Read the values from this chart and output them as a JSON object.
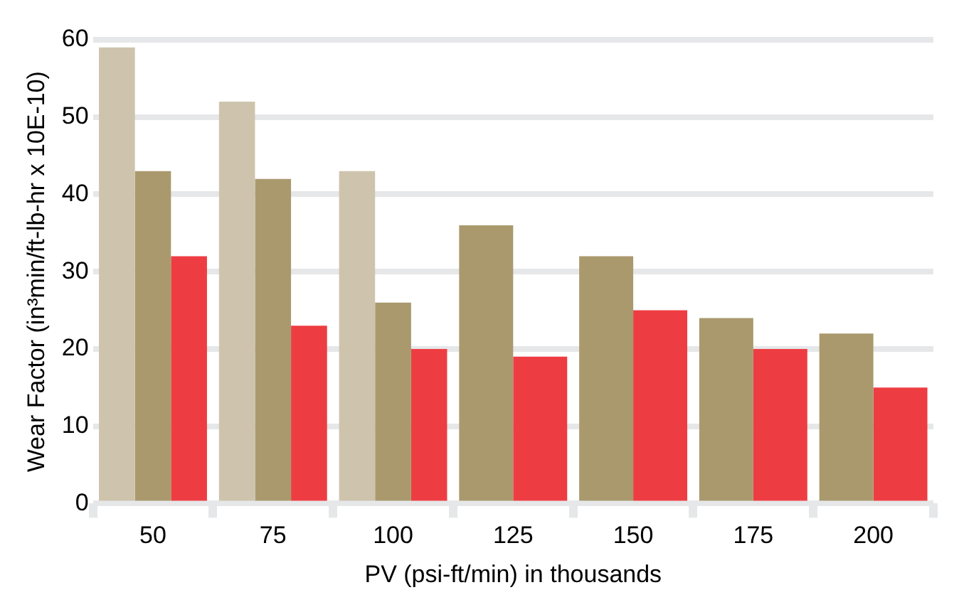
{
  "chart_data": {
    "type": "bar",
    "xlabel": "PV (psi-ft/min) in thousands",
    "ylabel": "Wear Factor (in³min/ft-lb-hr x 10E-10)",
    "categories": [
      "50",
      "75",
      "100",
      "125",
      "150",
      "175",
      "200"
    ],
    "series": [
      {
        "color": "#cec4ad",
        "values": [
          59,
          52,
          43,
          null,
          null,
          null,
          null
        ]
      },
      {
        "color": "#a9996d",
        "values": [
          43,
          42,
          26,
          36,
          32,
          24,
          22
        ]
      },
      {
        "color": "#ee3d42",
        "values": [
          32,
          23,
          20,
          19,
          25,
          20,
          15
        ]
      }
    ],
    "ylim": [
      0,
      60
    ],
    "yticks": [
      0,
      10,
      20,
      30,
      40,
      50,
      60
    ],
    "grid": "y",
    "legend": false
  }
}
